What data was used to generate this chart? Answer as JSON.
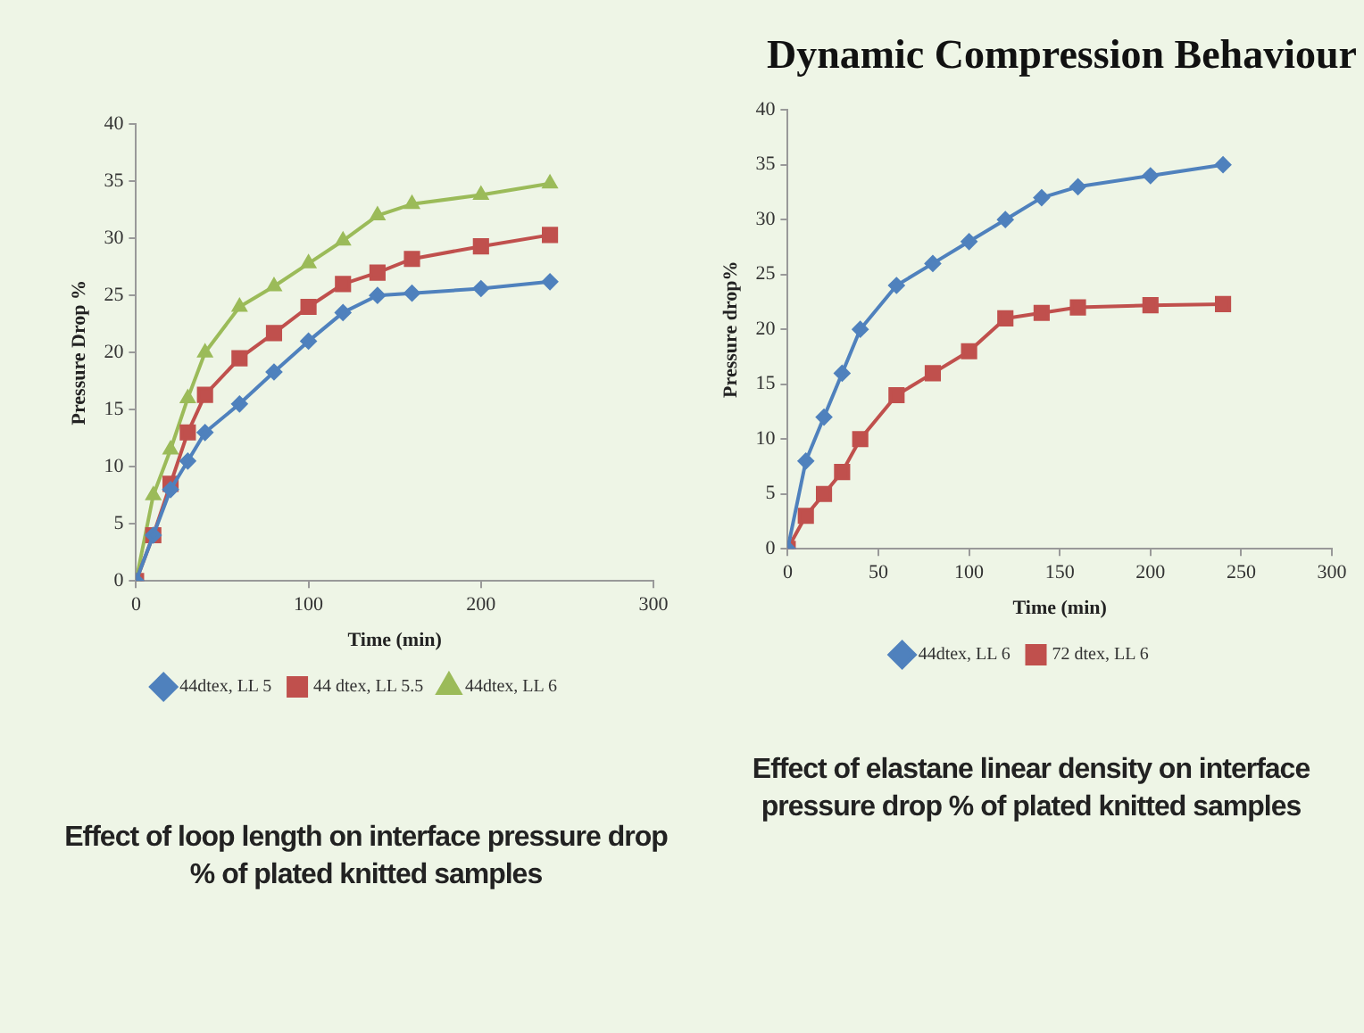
{
  "chart_data": [
    {
      "type": "line",
      "xlabel": "Time (min)",
      "ylabel": "Pressure Drop %",
      "xlim": [
        0,
        300
      ],
      "xticks": [
        0,
        100,
        200,
        300
      ],
      "ylim": [
        0,
        40
      ],
      "yticks": [
        0,
        5,
        10,
        15,
        20,
        25,
        30,
        35,
        40
      ],
      "grid": false,
      "legend": "bottom",
      "x": [
        0,
        10,
        20,
        30,
        40,
        60,
        80,
        100,
        120,
        140,
        160,
        200,
        240
      ],
      "series": [
        {
          "name": "44dtex, LL 5",
          "color": "#4f81bd",
          "marker": "diamond",
          "values": [
            0,
            4,
            8,
            10.5,
            13,
            15.5,
            18.3,
            21,
            23.5,
            25,
            25.2,
            25.6,
            26.2
          ]
        },
        {
          "name": "44 dtex, LL 5.5",
          "color": "#c0504d",
          "marker": "square",
          "values": [
            0,
            4,
            8.5,
            13,
            16.3,
            19.5,
            21.7,
            24,
            26,
            27,
            28.2,
            29.3,
            30.3
          ]
        },
        {
          "name": "44dtex, LL 6",
          "color": "#9bbb59",
          "marker": "triangle",
          "values": [
            0,
            7.5,
            11.5,
            16,
            20,
            24,
            25.8,
            27.8,
            29.8,
            32,
            33,
            33.8,
            34.8
          ]
        }
      ],
      "annotations": [
        "Effect of loop length on interface pressure drop % of plated knitted samples"
      ]
    },
    {
      "type": "line",
      "title": "Dynamic Compression Behaviour",
      "xlabel": "Time (min)",
      "ylabel": "Pressure drop%",
      "xlim": [
        0,
        300
      ],
      "xticks": [
        0,
        50,
        100,
        150,
        200,
        250,
        300
      ],
      "ylim": [
        0,
        40
      ],
      "yticks": [
        0,
        5,
        10,
        15,
        20,
        25,
        30,
        35,
        40
      ],
      "grid": false,
      "legend": "bottom",
      "x": [
        0,
        10,
        20,
        30,
        40,
        60,
        80,
        100,
        120,
        140,
        160,
        200,
        240
      ],
      "series": [
        {
          "name": "44dtex, LL 6",
          "color": "#4f81bd",
          "marker": "diamond",
          "values": [
            0,
            8,
            12,
            16,
            20,
            24,
            26,
            28,
            30,
            32,
            33,
            34,
            35
          ]
        },
        {
          "name": "72 dtex, LL 6",
          "color": "#c0504d",
          "marker": "square",
          "values": [
            0,
            3,
            5,
            7,
            10,
            14,
            16,
            18,
            21,
            21.5,
            22,
            22.2,
            22.3
          ]
        }
      ],
      "annotations": [
        "Effect of elastane linear density on interface pressure drop % of plated knitted samples"
      ]
    }
  ]
}
